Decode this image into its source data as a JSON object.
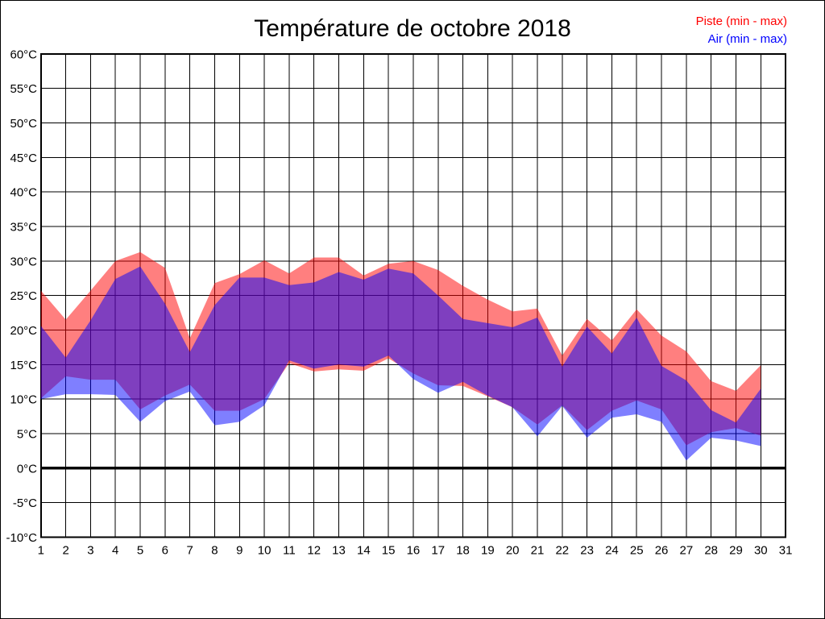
{
  "chart_data": {
    "type": "area",
    "title": "Température de octobre 2018",
    "xlabel": "",
    "ylabel": "",
    "xlim": [
      1,
      31
    ],
    "ylim": [
      -10,
      60
    ],
    "y_tick_step": 5,
    "y_tick_labels": [
      "-10°C",
      "-5°C",
      "0°C",
      "5°C",
      "10°C",
      "15°C",
      "20°C",
      "25°C",
      "30°C",
      "35°C",
      "40°C",
      "45°C",
      "50°C",
      "55°C",
      "60°C"
    ],
    "x_tick_labels": [
      "1",
      "2",
      "3",
      "4",
      "5",
      "6",
      "7",
      "8",
      "9",
      "10",
      "11",
      "12",
      "13",
      "14",
      "15",
      "16",
      "17",
      "18",
      "19",
      "20",
      "21",
      "22",
      "23",
      "24",
      "25",
      "26",
      "27",
      "28",
      "29",
      "30",
      "31"
    ],
    "grid": true,
    "zero_line": 0,
    "legend_position": "top-right",
    "x": [
      1,
      2,
      3,
      4,
      5,
      6,
      7,
      8,
      9,
      10,
      11,
      12,
      13,
      14,
      15,
      16,
      17,
      18,
      19,
      20,
      21,
      22,
      23,
      24,
      25,
      26,
      27,
      28,
      29,
      30
    ],
    "series": [
      {
        "name": "Piste (min - max)",
        "color": "#ff0000",
        "opacity": 0.5,
        "min": [
          10.1,
          13.3,
          12.8,
          12.8,
          8.5,
          10.5,
          12.1,
          8.3,
          8.3,
          10.0,
          15.2,
          14.0,
          14.3,
          14.1,
          15.9,
          13.7,
          12.0,
          11.9,
          10.4,
          8.8,
          6.3,
          9.1,
          5.5,
          8.3,
          9.8,
          8.5,
          3.3,
          5.2,
          5.8,
          4.7
        ],
        "max": [
          25.7,
          21.5,
          25.7,
          30.0,
          31.3,
          29.0,
          18.8,
          26.8,
          28.1,
          30.1,
          28.2,
          30.5,
          30.5,
          27.9,
          29.6,
          30.0,
          28.7,
          26.4,
          24.4,
          22.7,
          23.1,
          16.3,
          21.6,
          18.5,
          23.0,
          19.2,
          16.9,
          12.6,
          11.2,
          14.9
        ]
      },
      {
        "name": "Air (min - max)",
        "color": "#0000ff",
        "opacity": 0.5,
        "min": [
          10.0,
          10.7,
          10.7,
          10.6,
          6.7,
          9.7,
          11.1,
          6.2,
          6.7,
          9.1,
          15.6,
          14.4,
          15.0,
          14.7,
          16.3,
          12.9,
          10.9,
          12.5,
          10.5,
          8.8,
          4.6,
          9.0,
          4.4,
          7.3,
          7.8,
          6.7,
          1.1,
          4.4,
          4.0,
          3.2
        ],
        "max": [
          20.6,
          16.0,
          21.4,
          27.4,
          29.2,
          23.8,
          16.8,
          23.6,
          27.6,
          27.6,
          26.5,
          26.9,
          28.4,
          27.3,
          28.9,
          28.2,
          25.0,
          21.6,
          21.0,
          20.4,
          21.8,
          14.7,
          20.5,
          16.6,
          21.8,
          14.8,
          12.7,
          8.4,
          6.6,
          11.5
        ]
      }
    ]
  }
}
